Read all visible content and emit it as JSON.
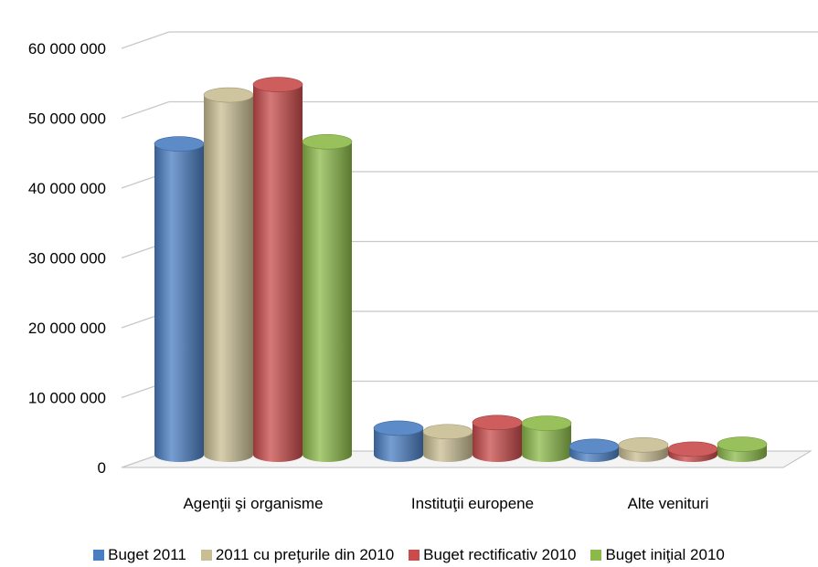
{
  "chart_data": {
    "type": "bar",
    "style": "3d-cylinder",
    "categories": [
      "Agenţii şi organisme",
      "Instituţii europene",
      "Alte venituri"
    ],
    "series": [
      {
        "name": "Buget 2011",
        "color": "#4A7EC2",
        "values": [
          44500000,
          3800000,
          1200000
        ]
      },
      {
        "name": "2011 cu preţurile din 2010",
        "color": "#C9BE93",
        "values": [
          51500000,
          3300000,
          1400000
        ]
      },
      {
        "name": "Buget rectificativ 2010",
        "color": "#C94B4B",
        "values": [
          53000000,
          4600000,
          800000
        ]
      },
      {
        "name": "Buget iniţial 2010",
        "color": "#8CBA4A",
        "values": [
          44800000,
          4500000,
          1500000
        ]
      }
    ],
    "ylim": [
      0,
      60000000
    ],
    "yticks": [
      0,
      10000000,
      20000000,
      30000000,
      40000000,
      50000000,
      60000000
    ],
    "ytick_labels": [
      "0",
      "10 000 000",
      "20 000 000",
      "30 000 000",
      "40 000 000",
      "50 000 000",
      "60 000 000"
    ],
    "grid": true,
    "legend_position": "bottom"
  }
}
